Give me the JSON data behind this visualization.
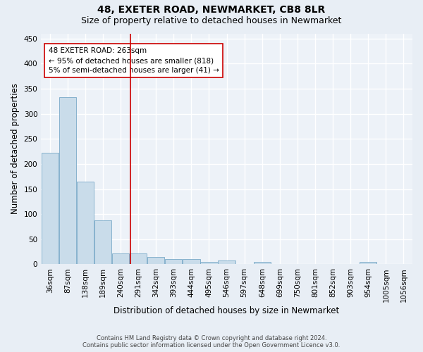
{
  "title": "48, EXETER ROAD, NEWMARKET, CB8 8LR",
  "subtitle": "Size of property relative to detached houses in Newmarket",
  "xlabel": "Distribution of detached houses by size in Newmarket",
  "ylabel": "Number of detached properties",
  "footer_line1": "Contains HM Land Registry data © Crown copyright and database right 2024.",
  "footer_line2": "Contains public sector information licensed under the Open Government Licence v3.0.",
  "categories": [
    "36sqm",
    "87sqm",
    "138sqm",
    "189sqm",
    "240sqm",
    "291sqm",
    "342sqm",
    "393sqm",
    "444sqm",
    "495sqm",
    "546sqm",
    "597sqm",
    "648sqm",
    "699sqm",
    "750sqm",
    "801sqm",
    "852sqm",
    "903sqm",
    "954sqm",
    "1005sqm",
    "1056sqm"
  ],
  "values": [
    222,
    333,
    165,
    88,
    22,
    22,
    15,
    10,
    10,
    5,
    7,
    0,
    5,
    0,
    0,
    0,
    0,
    0,
    5,
    0,
    0
  ],
  "bar_color": "#c9dcea",
  "bar_edge_color": "#7aaac8",
  "vline_x": 4.55,
  "vline_color": "#cc0000",
  "annotation_text": "48 EXETER ROAD: 263sqm\n← 95% of detached houses are smaller (818)\n5% of semi-detached houses are larger (41) →",
  "annotation_box_facecolor": "#ffffff",
  "annotation_box_edgecolor": "#cc0000",
  "ylim": [
    0,
    460
  ],
  "yticks": [
    0,
    50,
    100,
    150,
    200,
    250,
    300,
    350,
    400,
    450
  ],
  "bg_color": "#e8eef5",
  "plot_bg_color": "#edf2f8",
  "grid_color": "#ffffff",
  "title_fontsize": 10,
  "subtitle_fontsize": 9,
  "axis_label_fontsize": 8.5,
  "tick_fontsize": 7.5,
  "annotation_fontsize": 7.5,
  "footer_fontsize": 6.0
}
